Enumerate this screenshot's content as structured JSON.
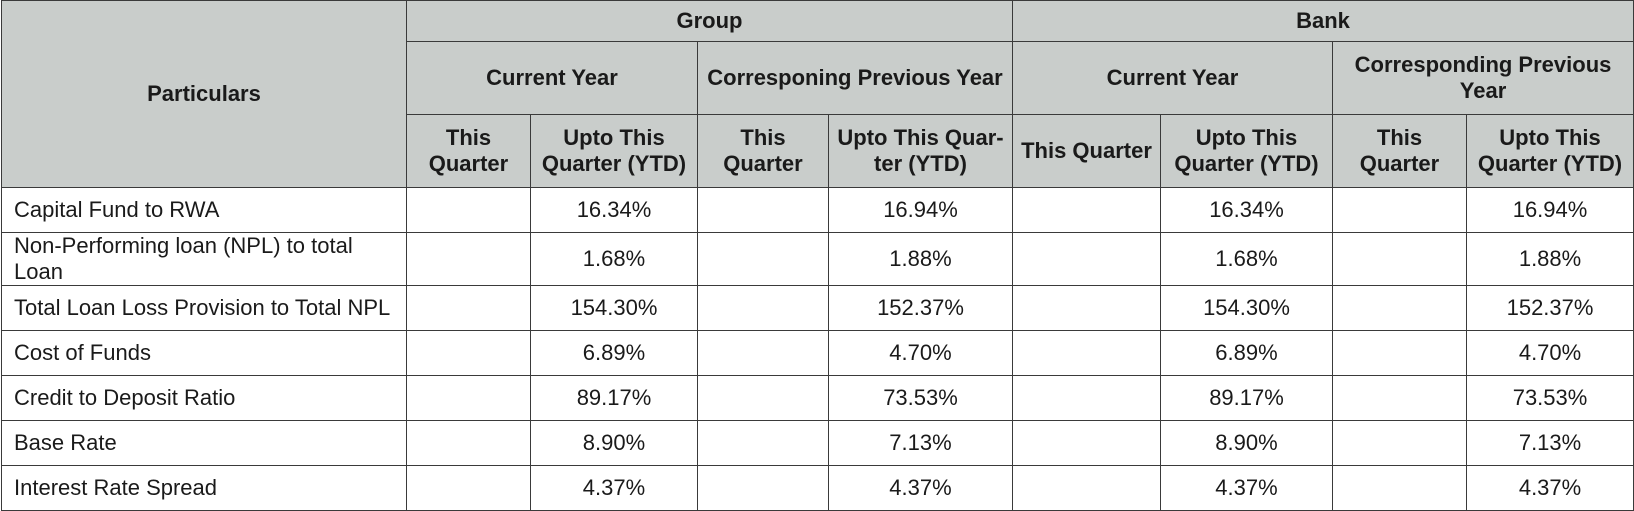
{
  "header": {
    "particulars": "Particulars",
    "group": "Group",
    "bank": "Bank",
    "group_current_year": "Current Year",
    "group_previous_year": "Corresponing Previous Year",
    "bank_current_year": "Current Year",
    "bank_previous_year": "Corresponding Previous Year",
    "sub": {
      "g_cy_q": "This Quarter",
      "g_cy_ytd": "Upto This Quarter (YTD)",
      "g_py_q": "This Quarter",
      "g_py_ytd": "Upto This Quar-ter (YTD)",
      "b_cy_q": "This Quarter",
      "b_cy_ytd": "Upto This Quarter (YTD)",
      "b_py_q": "This Quarter",
      "b_py_ytd": "Upto This Quarter (YTD)"
    }
  },
  "rows": [
    {
      "label": "Capital Fund to RWA",
      "g_cy_q": "",
      "g_cy_ytd": "16.34%",
      "g_py_q": "",
      "g_py_ytd": "16.94%",
      "b_cy_q": "",
      "b_cy_ytd": "16.34%",
      "b_py_q": "",
      "b_py_ytd": "16.94%"
    },
    {
      "label": "Non-Performing loan (NPL) to total Loan",
      "g_cy_q": "",
      "g_cy_ytd": "1.68%",
      "g_py_q": "",
      "g_py_ytd": "1.88%",
      "b_cy_q": "",
      "b_cy_ytd": "1.68%",
      "b_py_q": "",
      "b_py_ytd": "1.88%"
    },
    {
      "label": "Total Loan Loss Provision to Total NPL",
      "g_cy_q": "",
      "g_cy_ytd": "154.30%",
      "g_py_q": "",
      "g_py_ytd": "152.37%",
      "b_cy_q": "",
      "b_cy_ytd": "154.30%",
      "b_py_q": "",
      "b_py_ytd": "152.37%"
    },
    {
      "label": "Cost of Funds",
      "g_cy_q": "",
      "g_cy_ytd": "6.89%",
      "g_py_q": "",
      "g_py_ytd": "4.70%",
      "b_cy_q": "",
      "b_cy_ytd": "6.89%",
      "b_py_q": "",
      "b_py_ytd": "4.70%"
    },
    {
      "label": "Credit to Deposit Ratio",
      "g_cy_q": "",
      "g_cy_ytd": "89.17%",
      "g_py_q": "",
      "g_py_ytd": "73.53%",
      "b_cy_q": "",
      "b_cy_ytd": "89.17%",
      "b_py_q": "",
      "b_py_ytd": "73.53%"
    },
    {
      "label": "Base Rate",
      "g_cy_q": "",
      "g_cy_ytd": "8.90%",
      "g_py_q": "",
      "g_py_ytd": "7.13%",
      "b_cy_q": "",
      "b_cy_ytd": "8.90%",
      "b_py_q": "",
      "b_py_ytd": "7.13%"
    },
    {
      "label": "Interest Rate Spread",
      "g_cy_q": "",
      "g_cy_ytd": "4.37%",
      "g_py_q": "",
      "g_py_ytd": "4.37%",
      "b_cy_q": "",
      "b_cy_ytd": "4.37%",
      "b_py_q": "",
      "b_py_ytd": "4.37%"
    }
  ]
}
